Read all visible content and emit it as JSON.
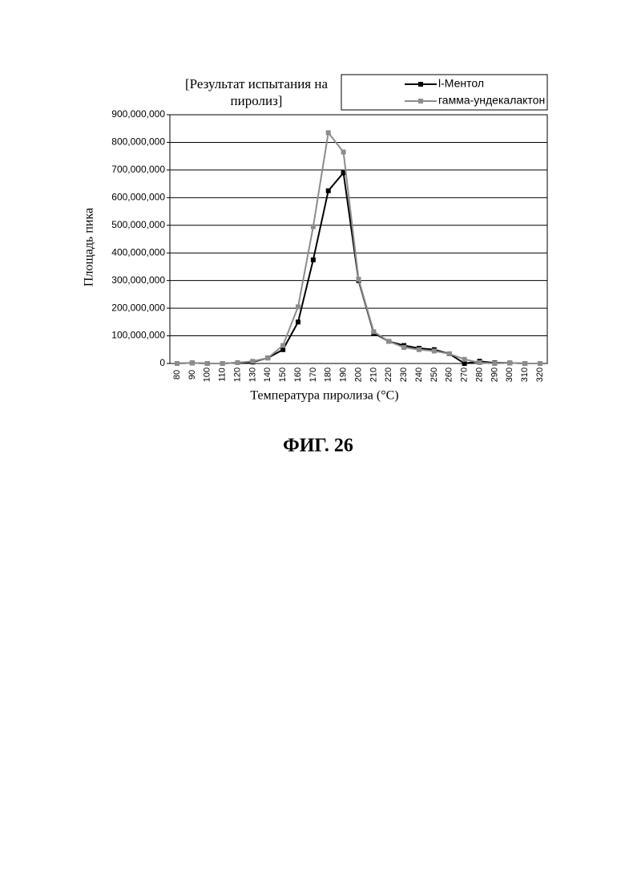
{
  "chart_data": {
    "type": "line",
    "title": "[Результат испытания на пиролиз]",
    "y_label": "Площадь пика",
    "x_label": "Температура пиролиза (°C)",
    "caption": "ФИГ. 26",
    "categories": [
      "80",
      "90",
      "100",
      "110",
      "120",
      "130",
      "140",
      "150",
      "160",
      "170",
      "180",
      "190",
      "200",
      "210",
      "220",
      "230",
      "240",
      "250",
      "260",
      "270",
      "280",
      "290",
      "300",
      "310",
      "320"
    ],
    "series": [
      {
        "name": "l-Ментол",
        "color": "#000000",
        "values": [
          0,
          2000000,
          0,
          0,
          3000000,
          5000000,
          20000000,
          50000000,
          150000000,
          375000000,
          625000000,
          690000000,
          300000000,
          110000000,
          80000000,
          65000000,
          55000000,
          50000000,
          35000000,
          0,
          8000000,
          2000000,
          2000000,
          0,
          0
        ]
      },
      {
        "name": "гамма-ундекалактон",
        "color": "#8c8c8c",
        "values": [
          0,
          2000000,
          0,
          0,
          3000000,
          8000000,
          20000000,
          65000000,
          205000000,
          495000000,
          835000000,
          765000000,
          305000000,
          115000000,
          80000000,
          58000000,
          50000000,
          45000000,
          35000000,
          15000000,
          3000000,
          0,
          2000000,
          0,
          0
        ]
      }
    ],
    "ylim": [
      0,
      900000000
    ],
    "yticks": [
      0,
      {
        "value": 100000000,
        "label": "100,000,000"
      },
      {
        "value": 200000000,
        "label": "200,000,000"
      },
      {
        "value": 300000000,
        "label": "300,000,000"
      },
      {
        "value": 400000000,
        "label": "400,000,000"
      },
      {
        "value": 500000000,
        "label": "500,000,000"
      },
      {
        "value": 600000000,
        "label": "600,000,000"
      },
      {
        "value": 700000000,
        "label": "700,000,000"
      },
      {
        "value": 800000000,
        "label": "800,000,000"
      },
      {
        "value": 900000000,
        "label": "900,000,000"
      }
    ],
    "grid": true,
    "legend": "top-right"
  }
}
